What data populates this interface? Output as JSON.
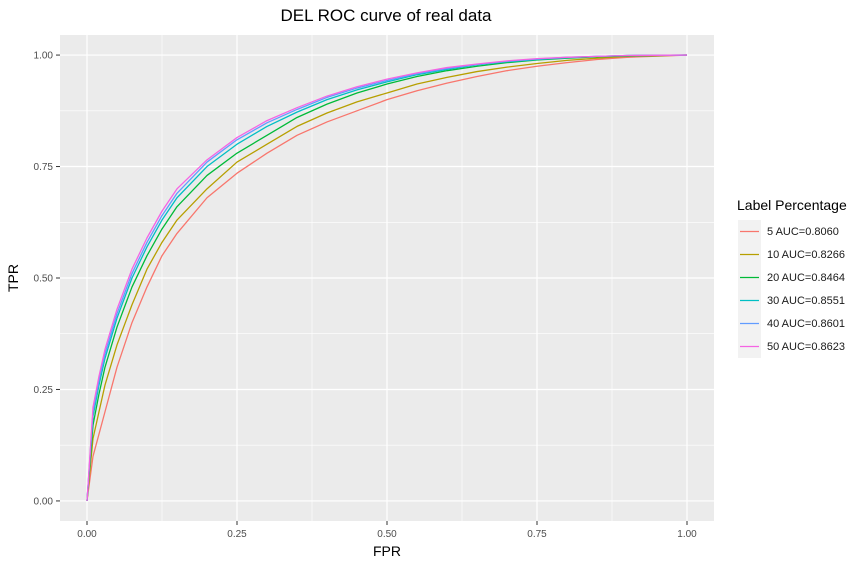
{
  "chart_data": {
    "type": "line",
    "title": "DEL ROC curve of real data",
    "xlabel": "FPR",
    "ylabel": "TPR",
    "xlim": [
      -0.045,
      1.045
    ],
    "ylim": [
      -0.045,
      1.045
    ],
    "xticks": [
      0,
      0.25,
      0.5,
      0.75,
      1
    ],
    "xtick_labels": [
      "0.00",
      "0.25",
      "0.50",
      "0.75",
      "1.00"
    ],
    "yticks": [
      0,
      0.25,
      0.5,
      0.75,
      1
    ],
    "ytick_labels": [
      "0.00",
      "0.25",
      "0.50",
      "0.75",
      "1.00"
    ],
    "grid": true,
    "legend": {
      "title": "Label Percentage",
      "position": "right"
    },
    "series": [
      {
        "name": "5 AUC=0.8060",
        "color": "#F8766D",
        "x": [
          0,
          0.01,
          0.02,
          0.03,
          0.05,
          0.075,
          0.1,
          0.125,
          0.15,
          0.2,
          0.25,
          0.3,
          0.35,
          0.4,
          0.45,
          0.5,
          0.55,
          0.6,
          0.65,
          0.7,
          0.75,
          0.8,
          0.85,
          0.9,
          1.0
        ],
        "y": [
          0,
          0.1,
          0.15,
          0.2,
          0.3,
          0.4,
          0.48,
          0.55,
          0.6,
          0.68,
          0.735,
          0.78,
          0.82,
          0.85,
          0.875,
          0.9,
          0.92,
          0.937,
          0.952,
          0.965,
          0.975,
          0.983,
          0.99,
          0.995,
          1.0
        ]
      },
      {
        "name": "10 AUC=0.8266",
        "color": "#B79F00",
        "x": [
          0,
          0.01,
          0.02,
          0.03,
          0.05,
          0.075,
          0.1,
          0.125,
          0.15,
          0.2,
          0.25,
          0.3,
          0.35,
          0.4,
          0.45,
          0.5,
          0.55,
          0.6,
          0.65,
          0.7,
          0.75,
          0.8,
          0.85,
          0.9,
          1.0
        ],
        "y": [
          0,
          0.14,
          0.2,
          0.26,
          0.35,
          0.44,
          0.52,
          0.58,
          0.63,
          0.7,
          0.76,
          0.8,
          0.84,
          0.87,
          0.895,
          0.915,
          0.935,
          0.95,
          0.963,
          0.973,
          0.981,
          0.988,
          0.993,
          0.997,
          1.0
        ]
      },
      {
        "name": "20 AUC=0.8464",
        "color": "#00BA38",
        "x": [
          0,
          0.01,
          0.02,
          0.03,
          0.05,
          0.075,
          0.1,
          0.125,
          0.15,
          0.2,
          0.25,
          0.3,
          0.35,
          0.4,
          0.45,
          0.5,
          0.55,
          0.6,
          0.65,
          0.7,
          0.75,
          0.8,
          0.85,
          0.9,
          1.0
        ],
        "y": [
          0,
          0.17,
          0.24,
          0.3,
          0.39,
          0.48,
          0.55,
          0.61,
          0.66,
          0.73,
          0.78,
          0.82,
          0.86,
          0.89,
          0.915,
          0.935,
          0.952,
          0.965,
          0.975,
          0.983,
          0.989,
          0.993,
          0.996,
          0.998,
          1.0
        ]
      },
      {
        "name": "30 AUC=0.8551",
        "color": "#00BFC4",
        "x": [
          0,
          0.01,
          0.02,
          0.03,
          0.05,
          0.075,
          0.1,
          0.125,
          0.15,
          0.2,
          0.25,
          0.3,
          0.35,
          0.4,
          0.45,
          0.5,
          0.55,
          0.6,
          0.65,
          0.7,
          0.75,
          0.8,
          0.85,
          0.9,
          1.0
        ],
        "y": [
          0,
          0.19,
          0.26,
          0.32,
          0.41,
          0.5,
          0.57,
          0.63,
          0.68,
          0.75,
          0.8,
          0.84,
          0.872,
          0.9,
          0.922,
          0.94,
          0.956,
          0.968,
          0.978,
          0.985,
          0.99,
          0.994,
          0.997,
          0.999,
          1.0
        ]
      },
      {
        "name": "40 AUC=0.8601",
        "color": "#619CFF",
        "x": [
          0,
          0.01,
          0.02,
          0.03,
          0.05,
          0.075,
          0.1,
          0.125,
          0.15,
          0.2,
          0.25,
          0.3,
          0.35,
          0.4,
          0.45,
          0.5,
          0.55,
          0.6,
          0.65,
          0.7,
          0.75,
          0.8,
          0.85,
          0.9,
          1.0
        ],
        "y": [
          0,
          0.2,
          0.27,
          0.33,
          0.42,
          0.51,
          0.58,
          0.64,
          0.69,
          0.76,
          0.81,
          0.848,
          0.878,
          0.905,
          0.926,
          0.943,
          0.958,
          0.97,
          0.979,
          0.986,
          0.991,
          0.995,
          0.997,
          0.999,
          1.0
        ]
      },
      {
        "name": "50 AUC=0.8623",
        "color": "#F564E3",
        "x": [
          0,
          0.01,
          0.02,
          0.03,
          0.05,
          0.075,
          0.1,
          0.125,
          0.15,
          0.2,
          0.25,
          0.3,
          0.35,
          0.4,
          0.45,
          0.5,
          0.55,
          0.6,
          0.65,
          0.7,
          0.75,
          0.8,
          0.85,
          0.9,
          1.0
        ],
        "y": [
          0,
          0.21,
          0.28,
          0.34,
          0.43,
          0.52,
          0.59,
          0.65,
          0.7,
          0.765,
          0.815,
          0.853,
          0.882,
          0.908,
          0.929,
          0.946,
          0.96,
          0.972,
          0.98,
          0.987,
          0.992,
          0.995,
          0.997,
          0.999,
          1.0
        ]
      }
    ]
  }
}
